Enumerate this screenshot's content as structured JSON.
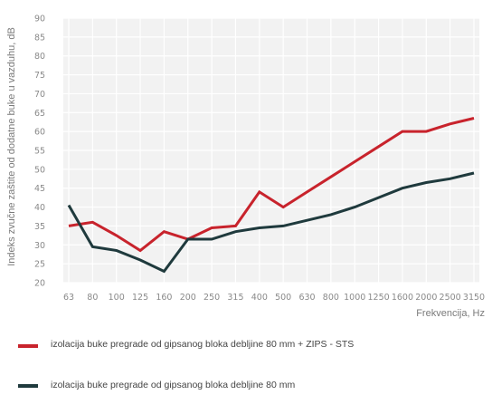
{
  "chart_data": {
    "type": "line",
    "title": "",
    "xlabel": "Frekvencija, Hz",
    "ylabel": "Indeks zvučne zaštite od dodatne buke u vazduhu, dB",
    "categories": [
      "63",
      "80",
      "100",
      "125",
      "160",
      "200",
      "250",
      "315",
      "400",
      "500",
      "630",
      "800",
      "1000",
      "1250",
      "1600",
      "2000",
      "2500",
      "3150"
    ],
    "ylim": [
      20,
      90
    ],
    "yticks": [
      "90",
      "85",
      "80",
      "75",
      "70",
      "65",
      "60",
      "55",
      "50",
      "45",
      "40",
      "35",
      "30",
      "25",
      "20"
    ],
    "grid": true,
    "legend_position": "bottom",
    "series": [
      {
        "name": "izolacija buke pregrade od gipsanog bloka debljine 80 mm + ZIPS - STS",
        "color": "#c8232c",
        "values": [
          35,
          36,
          32.5,
          28.5,
          33.5,
          31.5,
          34.5,
          35,
          44,
          40,
          44,
          48,
          52,
          56,
          60,
          60,
          62,
          63.5
        ]
      },
      {
        "name": "izolacija buke pregrade od gipsanog bloka debljine 80 mm",
        "color": "#1f3a3d",
        "values": [
          40.5,
          29.5,
          28.5,
          26,
          23,
          31.5,
          31.5,
          33.5,
          34.5,
          35,
          36.5,
          38,
          40,
          42.5,
          45,
          46.5,
          47.5,
          49
        ]
      }
    ]
  }
}
